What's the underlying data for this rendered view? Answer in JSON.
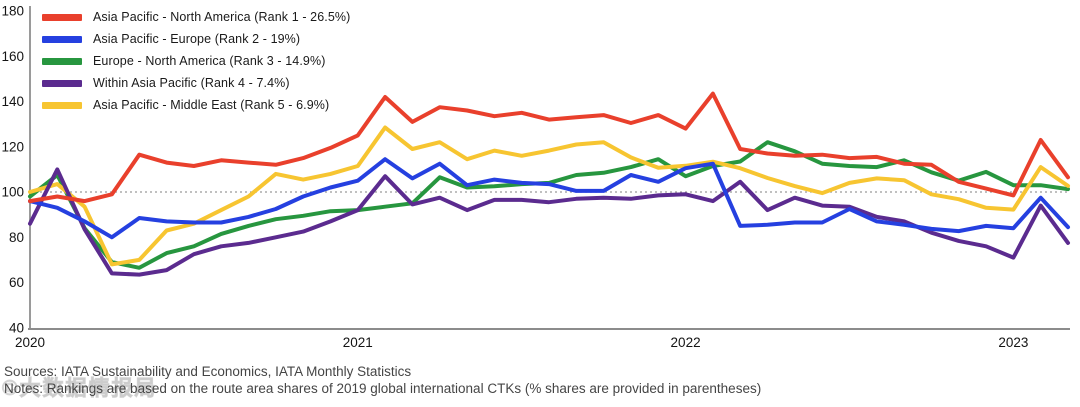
{
  "watermark": "©大数据情报局",
  "footer": {
    "sources": "Sources: IATA Sustainability and Economics, IATA Monthly Statistics",
    "notes": "Notes: Rankings are based on the route area shares of 2019 global international CTKs (% shares are provided in parentheses)"
  },
  "chart_data": {
    "type": "line",
    "title": "",
    "ylabel": "",
    "xlabel": "",
    "ylim": [
      40,
      180
    ],
    "yticks": [
      180,
      160,
      140,
      120,
      100,
      80,
      60,
      40
    ],
    "reference_line": 100,
    "grid": "off",
    "legend_position": "top-left",
    "x_tick_labels": [
      "2020",
      "2021",
      "2022",
      "2023"
    ],
    "x_tick_month_index": [
      0,
      12,
      24,
      36
    ],
    "x": [
      "2020-01",
      "2020-02",
      "2020-03",
      "2020-04",
      "2020-05",
      "2020-06",
      "2020-07",
      "2020-08",
      "2020-09",
      "2020-10",
      "2020-11",
      "2020-12",
      "2021-01",
      "2021-02",
      "2021-03",
      "2021-04",
      "2021-05",
      "2021-06",
      "2021-07",
      "2021-08",
      "2021-09",
      "2021-10",
      "2021-11",
      "2021-12",
      "2022-01",
      "2022-02",
      "2022-03",
      "2022-04",
      "2022-05",
      "2022-06",
      "2022-07",
      "2022-08",
      "2022-09",
      "2022-10",
      "2022-11",
      "2022-12",
      "2023-01",
      "2023-02",
      "2023-03"
    ],
    "series": [
      {
        "name": "Asia Pacific - North America",
        "label": "Asia Pacific - North America (Rank 1 - 26.5%)",
        "rank": 1,
        "share": "26.5%",
        "color": "#E9402C",
        "values": [
          96,
          98,
          96,
          99,
          116.5,
          113,
          111.5,
          114,
          113,
          112,
          115,
          119.5,
          125,
          142,
          131,
          137.5,
          136,
          133.5,
          135,
          132,
          133,
          134,
          130.5,
          134,
          128,
          143.5,
          119,
          117,
          116,
          116.5,
          115,
          115.5,
          112.5,
          112,
          104.5,
          101.5,
          98.5,
          123,
          106.5
        ]
      },
      {
        "name": "Asia Pacific - Europe",
        "label": "Asia Pacific - Europe (Rank 2 - 19%)",
        "rank": 2,
        "share": "19%",
        "color": "#2540E0",
        "values": [
          96,
          93,
          87,
          80,
          88.5,
          87,
          86.5,
          86.5,
          89,
          92.5,
          98,
          102,
          105,
          114.5,
          106,
          112.5,
          103,
          105.5,
          104,
          103.5,
          100.5,
          100.5,
          107.5,
          104.5,
          110.5,
          112.5,
          85,
          85.5,
          86.5,
          86.5,
          92.5,
          87,
          85.5,
          83.7,
          82.7,
          85,
          84,
          97.5,
          84.5
        ]
      },
      {
        "name": "Europe - North America",
        "label": "Europe - North America (Rank 3 - 14.9%)",
        "rank": 3,
        "share": "14.9%",
        "color": "#27963F",
        "values": [
          98,
          107.5,
          84,
          69,
          66.5,
          73,
          76,
          81.5,
          85,
          88,
          89.5,
          91.5,
          92,
          93.5,
          95,
          106.5,
          102,
          102.5,
          103.5,
          104,
          107.5,
          108.5,
          111,
          114.5,
          107,
          111.5,
          113.5,
          122,
          118,
          112.5,
          111.5,
          111,
          114,
          108.7,
          105,
          108.9,
          103,
          103,
          101.3
        ]
      },
      {
        "name": "Within Asia Pacific",
        "label": "Within Asia Pacific (Rank 4 - 7.4%)",
        "rank": 4,
        "share": "7.4%",
        "color": "#5B2B8F",
        "values": [
          86,
          110,
          83.5,
          64,
          63.5,
          65.5,
          72.5,
          76,
          77.5,
          80,
          82.5,
          87,
          92,
          107,
          94.5,
          97.5,
          92,
          96.5,
          96.5,
          95.5,
          97,
          97.5,
          97,
          98.5,
          99,
          96,
          104.5,
          92,
          97.5,
          94,
          93.5,
          89,
          87,
          82,
          78.4,
          76,
          71,
          94,
          77.5
        ]
      },
      {
        "name": "Asia Pacific - Middle East",
        "label": "Asia Pacific - Middle East (Rank 5 - 6.9%)",
        "rank": 5,
        "share": "6.9%",
        "color": "#F7C531",
        "values": [
          100,
          103.5,
          93.5,
          68,
          70,
          83,
          86,
          92,
          98,
          108,
          105.5,
          108,
          111.5,
          128.5,
          119,
          122,
          114.5,
          118.3,
          116,
          118.3,
          121,
          122,
          115.3,
          110.7,
          111.6,
          113.4,
          110.5,
          106.2,
          102.6,
          99.5,
          104,
          106,
          105.2,
          99,
          96.8,
          93,
          92.2,
          111,
          102.7
        ]
      }
    ]
  }
}
